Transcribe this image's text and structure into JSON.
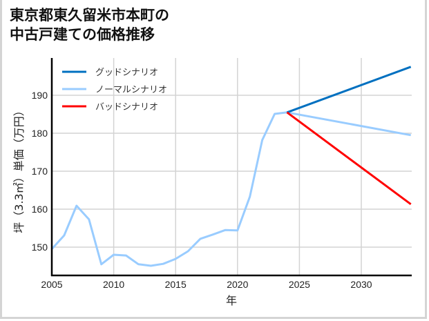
{
  "title": "東京都東久留米市本町の\n中古戸建ての価格推移",
  "chart_data": {
    "type": "line",
    "title": "東京都東久留米市本町の中古戸建ての価格推移",
    "xlabel": "年",
    "ylabel": "坪（3.3㎡）単価（万円）",
    "xlim": [
      2005,
      2034
    ],
    "ylim": [
      143,
      200
    ],
    "x_ticks": [
      2005,
      2010,
      2015,
      2020,
      2025,
      2030
    ],
    "y_ticks": [
      150,
      160,
      170,
      180,
      190
    ],
    "grid": true,
    "legend_position": "upper left",
    "series": [
      {
        "name": "グッドシナリオ",
        "color": "#0070c0",
        "x": [
          2024,
          2034
        ],
        "values": [
          185.5,
          197.5
        ]
      },
      {
        "name": "ノーマルシナリオ",
        "color": "#99ccff",
        "x": [
          2005,
          2006,
          2007,
          2008,
          2009,
          2010,
          2011,
          2012,
          2013,
          2014,
          2015,
          2016,
          2017,
          2018,
          2019,
          2020,
          2021,
          2022,
          2023,
          2024,
          2034
        ],
        "values": [
          149.5,
          153.1,
          160.9,
          157.3,
          145.5,
          148.0,
          147.8,
          145.5,
          145.1,
          145.6,
          146.9,
          148.9,
          152.2,
          153.3,
          154.5,
          154.4,
          163.3,
          178.2,
          185.1,
          185.5,
          179.5
        ]
      },
      {
        "name": "バッドシナリオ",
        "color": "#ff0000",
        "x": [
          2024,
          2034
        ],
        "values": [
          185.5,
          161.3
        ]
      }
    ]
  }
}
